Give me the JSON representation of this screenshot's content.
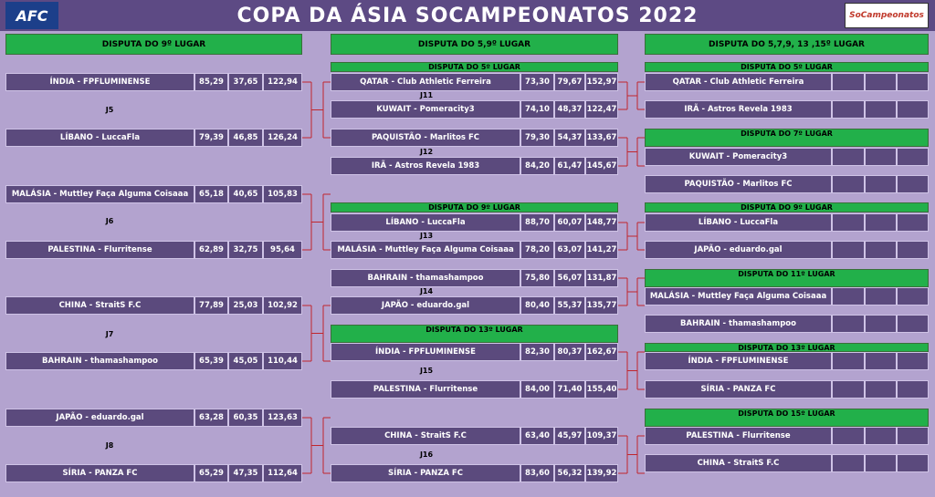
{
  "header": {
    "title": "COPA DA ÁSIA SOCAMPEONATOS  2022",
    "logo_left": "AFC",
    "logo_right": "SoCampeonatos"
  },
  "columns": [
    {
      "title": "DISPUTA DO 9º LUGAR",
      "groups": [
        {
          "matches": [
            {
              "label": "J5",
              "rows": [
                [
                  "ÍNDIA - FPFLUMINENSE",
                  "85,29",
                  "37,65",
                  "122,94"
                ],
                [
                  "LÍBANO - LuccaFla",
                  "79,39",
                  "46,85",
                  "126,24"
                ]
              ]
            },
            {
              "label": "J6",
              "rows": [
                [
                  "MALÁSIA - Muttley Faça Alguma Coisaaa",
                  "65,18",
                  "40,65",
                  "105,83"
                ],
                [
                  "PALESTINA - Flurritense",
                  "62,89",
                  "32,75",
                  "95,64"
                ]
              ]
            },
            {
              "label": "J7",
              "rows": [
                [
                  "CHINA - StraitS F.C",
                  "77,89",
                  "25,03",
                  "102,92"
                ],
                [
                  "BAHRAIN - thamashampoo",
                  "65,39",
                  "45,05",
                  "110,44"
                ]
              ]
            },
            {
              "label": "J8",
              "rows": [
                [
                  "JAPÃO - eduardo.gal",
                  "63,28",
                  "60,35",
                  "123,63"
                ],
                [
                  "SÍRIA - PANZA FC",
                  "65,29",
                  "47,35",
                  "112,64"
                ]
              ]
            }
          ]
        }
      ]
    },
    {
      "title": "DISPUTA DO 5,9º LUGAR",
      "groups": [
        {
          "title": "DISPUTA DO 5º LUGAR",
          "matches": [
            {
              "label": "J11",
              "rows": [
                [
                  "QATAR - Club Athletic Ferreira",
                  "73,30",
                  "79,67",
                  "152,97"
                ],
                [
                  "KUWAIT - Pomeracity3",
                  "74,10",
                  "48,37",
                  "122,47"
                ]
              ]
            },
            {
              "label": "J12",
              "rows": [
                [
                  "PAQUISTÃO - Marlitos FC",
                  "79,30",
                  "54,37",
                  "133,67"
                ],
                [
                  "IRÃ - Astros Revela 1983",
                  "84,20",
                  "61,47",
                  "145,67"
                ]
              ]
            }
          ]
        },
        {
          "title": "DISPUTA DO 9º LUGAR",
          "matches": [
            {
              "label": "J13",
              "rows": [
                [
                  "LÍBANO - LuccaFla",
                  "88,70",
                  "60,07",
                  "148,77"
                ],
                [
                  "MALÁSIA - Muttley Faça Alguma Coisaaa",
                  "78,20",
                  "63,07",
                  "141,27"
                ]
              ]
            },
            {
              "label": "J14",
              "rows": [
                [
                  "BAHRAIN - thamashampoo",
                  "75,80",
                  "56,07",
                  "131,87"
                ],
                [
                  "JAPÃO - eduardo.gal",
                  "80,40",
                  "55,37",
                  "135,77"
                ]
              ]
            }
          ]
        },
        {
          "title": "DISPUTA DO 13º LUGAR",
          "matches": [
            {
              "label": "J15",
              "rows": [
                [
                  "ÍNDIA - FPFLUMINENSE",
                  "82,30",
                  "80,37",
                  "162,67"
                ],
                [
                  "PALESTINA - Flurritense",
                  "84,00",
                  "71,40",
                  "155,40"
                ]
              ]
            },
            {
              "label": "J16",
              "rows": [
                [
                  "CHINA - StraitS F.C",
                  "63,40",
                  "45,97",
                  "109,37"
                ],
                [
                  "SÍRIA - PANZA FC",
                  "83,60",
                  "56,32",
                  "139,92"
                ]
              ]
            }
          ]
        }
      ]
    },
    {
      "title": "DISPUTA DO 5,7,9, 13 ,15º LUGAR",
      "groups": [
        {
          "title": "DISPUTA DO 5º LUGAR",
          "matches": [
            {
              "rows": [
                [
                  "QATAR - Club Athletic Ferreira"
                ],
                [
                  "IRÃ - Astros Revela 1983"
                ]
              ]
            }
          ]
        },
        {
          "title": "DISPUTA DO 7º LUGAR",
          "matches": [
            {
              "rows": [
                [
                  "KUWAIT - Pomeracity3"
                ],
                [
                  "PAQUISTÃO - Marlitos FC"
                ]
              ]
            }
          ]
        },
        {
          "title": "DISPUTA DO 9º LUGAR",
          "matches": [
            {
              "rows": [
                [
                  "LÍBANO - LuccaFla"
                ],
                [
                  "JAPÃO - eduardo.gal"
                ]
              ]
            }
          ]
        },
        {
          "title": "DISPUTA DO 11º LUGAR",
          "matches": [
            {
              "rows": [
                [
                  "MALÁSIA - Muttley Faça Alguma Coisaaa"
                ],
                [
                  "BAHRAIN - thamashampoo"
                ]
              ]
            }
          ]
        },
        {
          "title": "DISPUTA DO 13º LUGAR",
          "matches": [
            {
              "rows": [
                [
                  "ÍNDIA - FPFLUMINENSE"
                ],
                [
                  "SÍRIA - PANZA FC"
                ]
              ]
            }
          ]
        },
        {
          "title": "DISPUTA DO 15º LUGAR",
          "matches": [
            {
              "rows": [
                [
                  "PALESTINA - Flurritense"
                ],
                [
                  "CHINA - StraitS F.C"
                ]
              ]
            }
          ]
        }
      ]
    }
  ]
}
